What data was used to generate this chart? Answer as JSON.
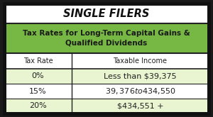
{
  "title": "SINGLE FILERS",
  "subtitle": "Tax Rates for Long-Term Capital Gains &\nQualified Dividends",
  "col_headers": [
    "Tax Rate",
    "Taxable Income"
  ],
  "rows": [
    [
      "0%",
      "Less than $39,375"
    ],
    [
      "15%",
      "$39,376 to $434,550"
    ],
    [
      "20%",
      "$434,551 +"
    ]
  ],
  "header_bg": "#76b843",
  "header_text_color": "#1a1a1a",
  "col_header_bg": "#ffffff",
  "col_header_text_color": "#222222",
  "row_bg_alt": "#e8f5d0",
  "row_bg_main": "#ffffff",
  "border_color": "#222222",
  "title_bg": "#ffffff",
  "title_text_color": "#111111",
  "outer_bg": "#1a1a1a",
  "outer_border_color": "#111111",
  "col_split": 0.33
}
